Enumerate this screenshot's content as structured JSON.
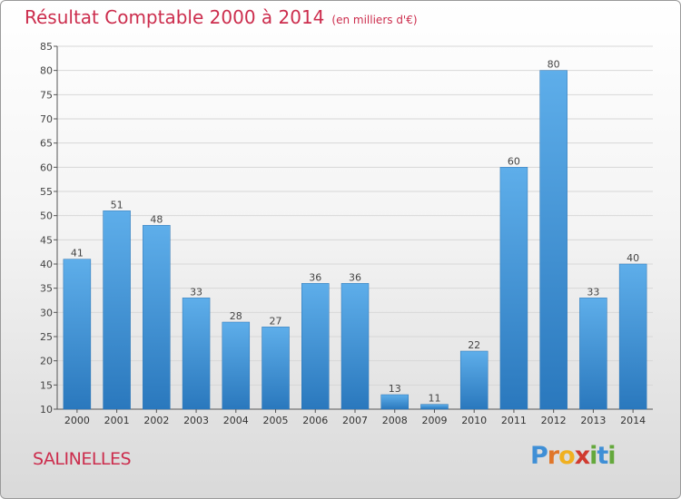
{
  "chart_data": {
    "type": "bar",
    "title": "Résultat Comptable 2000 à 2014",
    "subtitle": "(en milliers d'€)",
    "categories": [
      "2000",
      "2001",
      "2002",
      "2003",
      "2004",
      "2005",
      "2006",
      "2007",
      "2008",
      "2009",
      "2010",
      "2011",
      "2012",
      "2013",
      "2014"
    ],
    "values": [
      41,
      51,
      48,
      33,
      28,
      27,
      36,
      36,
      13,
      11,
      22,
      60,
      80,
      33,
      40
    ],
    "ylim": [
      10,
      85
    ],
    "yticks": [
      10,
      15,
      20,
      25,
      30,
      35,
      40,
      45,
      50,
      55,
      60,
      65,
      70,
      75,
      80,
      85
    ],
    "grid": true,
    "bar_color": "#3a8fd6"
  },
  "commune": "SALINELLES",
  "logo": {
    "text": "Proxiti"
  }
}
